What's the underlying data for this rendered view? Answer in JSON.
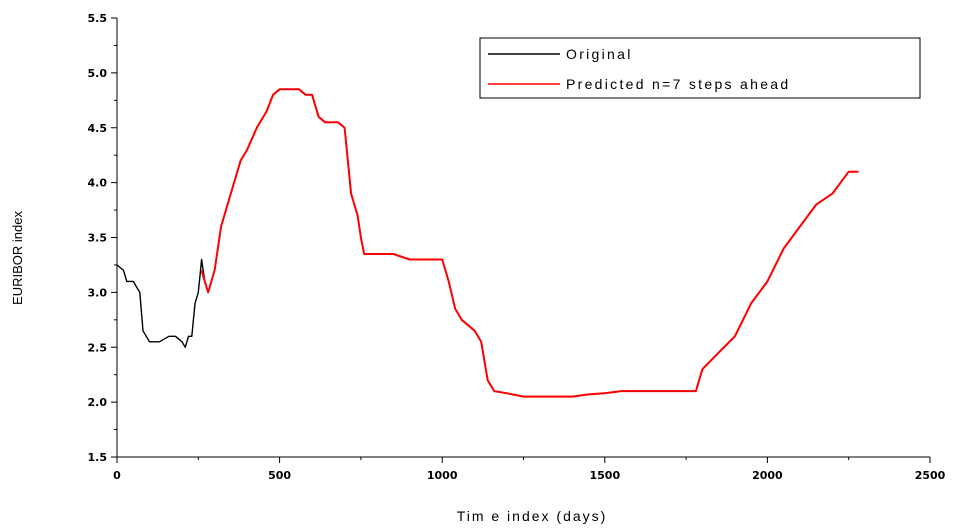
{
  "chart_data": {
    "type": "line",
    "title": "",
    "xlabel": "Tim e index (days)",
    "ylabel": "EURIBOR index",
    "xlim": [
      0,
      2500
    ],
    "ylim": [
      1.5,
      5.5
    ],
    "xticks": [
      0,
      500,
      1000,
      1500,
      2000,
      2500
    ],
    "xtick_labels": [
      "0",
      "500",
      "1000",
      "1500",
      "2000",
      "2500"
    ],
    "yticks": [
      1.5,
      2.0,
      2.5,
      3.0,
      3.5,
      4.0,
      4.5,
      5.0,
      5.5
    ],
    "ytick_labels": [
      "1.5",
      "2.0",
      "2.5",
      "3.0",
      "3.5",
      "4.0",
      "4.5",
      "5.0",
      "5.5"
    ],
    "grid": false,
    "legend_position": "top-right",
    "series": [
      {
        "name": "Original",
        "color": "#000000",
        "x": [
          0,
          20,
          30,
          50,
          60,
          70,
          80,
          90,
          100,
          130,
          160,
          180,
          200,
          210,
          220,
          230,
          240,
          250,
          260,
          270,
          280,
          300,
          320,
          350,
          380,
          400,
          430,
          460,
          480,
          500,
          520,
          540,
          560,
          580,
          600,
          620,
          640,
          660,
          680,
          700,
          720,
          740,
          750,
          760,
          800,
          850,
          900,
          950,
          1000,
          1020,
          1040,
          1060,
          1080,
          1100,
          1120,
          1140,
          1160,
          1200,
          1250,
          1300,
          1350,
          1400,
          1450,
          1500,
          1550,
          1600,
          1650,
          1700,
          1750,
          1780,
          1800,
          1850,
          1900,
          1950,
          2000,
          2050,
          2100,
          2150,
          2200,
          2250,
          2280
        ],
        "y": [
          3.25,
          3.2,
          3.1,
          3.1,
          3.05,
          3.0,
          2.65,
          2.6,
          2.55,
          2.55,
          2.6,
          2.6,
          2.55,
          2.5,
          2.6,
          2.6,
          2.9,
          3.0,
          3.3,
          3.1,
          3.0,
          3.2,
          3.6,
          3.9,
          4.2,
          4.3,
          4.5,
          4.65,
          4.8,
          4.85,
          4.85,
          4.85,
          4.85,
          4.8,
          4.8,
          4.6,
          4.55,
          4.55,
          4.55,
          4.5,
          3.9,
          3.7,
          3.5,
          3.35,
          3.35,
          3.35,
          3.3,
          3.3,
          3.3,
          3.1,
          2.85,
          2.75,
          2.7,
          2.65,
          2.55,
          2.2,
          2.1,
          2.08,
          2.05,
          2.05,
          2.05,
          2.05,
          2.07,
          2.08,
          2.1,
          2.1,
          2.1,
          2.1,
          2.1,
          2.1,
          2.3,
          2.45,
          2.6,
          2.9,
          3.1,
          3.4,
          3.6,
          3.8,
          3.9,
          4.1,
          4.1
        ]
      },
      {
        "name": "Predicted n=7 steps ahead",
        "color": "#ff0000",
        "x": [
          260,
          270,
          280,
          300,
          320,
          350,
          380,
          400,
          430,
          460,
          480,
          500,
          520,
          540,
          560,
          580,
          600,
          620,
          640,
          660,
          680,
          700,
          720,
          740,
          750,
          760,
          800,
          850,
          900,
          950,
          1000,
          1020,
          1040,
          1060,
          1080,
          1100,
          1120,
          1140,
          1160,
          1200,
          1250,
          1300,
          1350,
          1400,
          1450,
          1500,
          1550,
          1600,
          1650,
          1700,
          1750,
          1780,
          1800,
          1850,
          1900,
          1950,
          2000,
          2050,
          2100,
          2150,
          2200,
          2250,
          2280
        ],
        "y": [
          3.2,
          3.1,
          3.0,
          3.2,
          3.6,
          3.9,
          4.2,
          4.3,
          4.5,
          4.65,
          4.8,
          4.85,
          4.85,
          4.85,
          4.85,
          4.8,
          4.8,
          4.6,
          4.55,
          4.55,
          4.55,
          4.5,
          3.9,
          3.7,
          3.5,
          3.35,
          3.35,
          3.35,
          3.3,
          3.3,
          3.3,
          3.1,
          2.85,
          2.75,
          2.7,
          2.65,
          2.55,
          2.2,
          2.1,
          2.08,
          2.05,
          2.05,
          2.05,
          2.05,
          2.07,
          2.08,
          2.1,
          2.1,
          2.1,
          2.1,
          2.1,
          2.1,
          2.3,
          2.45,
          2.6,
          2.9,
          3.1,
          3.4,
          3.6,
          3.8,
          3.9,
          4.1,
          4.1
        ]
      }
    ]
  }
}
